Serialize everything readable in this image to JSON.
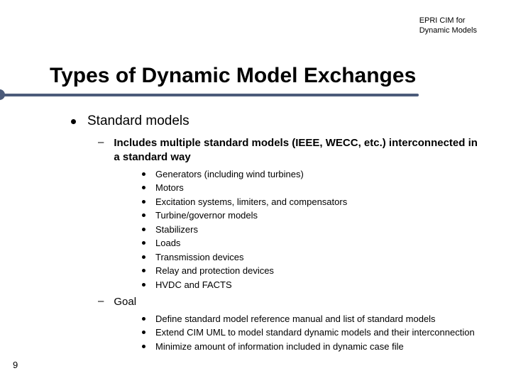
{
  "header": {
    "line1": "EPRI CIM for",
    "line2": "Dynamic Models"
  },
  "title": "Types of Dynamic Model Exchanges",
  "accent_color": "#4b5b7a",
  "page_number": "9",
  "content": {
    "lvl1": "Standard models",
    "sub1": {
      "label": "Includes multiple standard models (IEEE, WECC, etc.) interconnected in a standard way",
      "items": [
        "Generators (including wind turbines)",
        "Motors",
        "Excitation systems, limiters, and compensators",
        "Turbine/governor models",
        "Stabilizers",
        "Loads",
        "Transmission devices",
        "Relay and protection devices",
        "HVDC and FACTS"
      ]
    },
    "sub2": {
      "label": "Goal",
      "items": [
        "Define standard model reference manual and list of standard models",
        "Extend CIM UML to model standard dynamic models and their interconnection",
        "Minimize amount of information included in dynamic case file"
      ]
    }
  }
}
